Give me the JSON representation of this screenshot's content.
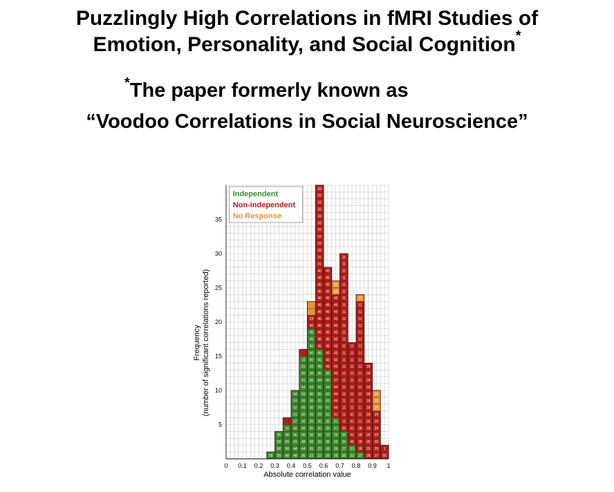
{
  "slide": {
    "title_line1": "Puzzlingly High Correlations in fMRI Studies of",
    "title_line2": "Emotion, Personality, and Social Cognition",
    "title_mark": "*",
    "subtitle_mark": "*",
    "subtitle_line1": "The paper formerly known as",
    "subtitle_line2": "“Voodoo Correlations in Social Neuroscience”"
  },
  "chart_data": {
    "type": "bar",
    "stacked": true,
    "xlabel": "Absolute correlation value",
    "ylabel_line1": "Frequency",
    "ylabel_line2": "(number of significant correlations reported)",
    "xlim": [
      0,
      1
    ],
    "ylim": [
      0,
      40
    ],
    "x_ticks": [
      "0",
      "0.1",
      "0.2",
      "0.3",
      "0.4",
      "0.5",
      "0.6",
      "0.7",
      "0.8",
      "0.9",
      "1"
    ],
    "y_ticks": [
      "5",
      "10",
      "15",
      "20",
      "25",
      "30",
      "35"
    ],
    "grid": true,
    "legend_position": "top-left",
    "bin_width": 0.05,
    "bin_starts": [
      0.25,
      0.3,
      0.35,
      0.4,
      0.45,
      0.5,
      0.55,
      0.6,
      0.65,
      0.7,
      0.75,
      0.8,
      0.85,
      0.9,
      0.95
    ],
    "series": [
      {
        "name": "Independent",
        "color": "#3a8a2e",
        "values": [
          1,
          4,
          5,
          10,
          15,
          19,
          16,
          13,
          6,
          4,
          2,
          1,
          0,
          0,
          0
        ]
      },
      {
        "name": "Non-independent",
        "color": "#b0201a",
        "values": [
          0,
          0,
          1,
          0,
          1,
          2,
          24,
          15,
          18,
          26,
          15,
          22,
          14,
          7,
          2
        ]
      },
      {
        "name": "No Response",
        "color": "#e8923a",
        "values": [
          0,
          0,
          0,
          0,
          0,
          2,
          0,
          0,
          2,
          0,
          0,
          1,
          0,
          3,
          0
        ]
      }
    ],
    "cell_labels": [
      [
        "59"
      ],
      [
        "59",
        "58",
        "59",
        "55"
      ],
      [
        "48",
        "58",
        "59",
        "48",
        "15"
      ],
      [
        "48",
        "44",
        "41",
        "46",
        "44",
        "47",
        "51",
        "52",
        "53",
        "54"
      ],
      [
        "36",
        "44",
        "48",
        "46",
        "46",
        "46",
        "45",
        "45",
        "36",
        "53",
        "43",
        "41",
        "45",
        "21",
        "15"
      ],
      [
        "22",
        "35",
        "38",
        "36",
        "36",
        "39",
        "36",
        "36",
        "36",
        "40",
        "43",
        "36",
        "38",
        "15",
        "40",
        "40",
        "40",
        "45",
        "45",
        "45",
        "23"
      ],
      [
        "22",
        "22",
        "35",
        "26",
        "36",
        "35",
        "29",
        "29",
        "35",
        "35",
        "41",
        "44",
        "45",
        "45",
        "45",
        "45",
        "45",
        "45",
        "45",
        "45",
        "45",
        "45",
        "45",
        "45",
        "45",
        "45",
        "49",
        "40",
        "31",
        "31",
        "33",
        "33",
        "33",
        "33",
        "33",
        "33",
        "33",
        "33",
        "33",
        "33",
        "33",
        "33"
      ],
      [
        "35",
        "36",
        "36",
        "33",
        "36",
        "35",
        "41",
        "41",
        "43",
        "43",
        "44",
        "45",
        "45",
        "45",
        "45",
        "45",
        "45",
        "45",
        "45",
        "45",
        "45",
        "45",
        "45",
        "45",
        "45",
        "45",
        "45",
        "45"
      ],
      [
        "36",
        "36",
        "35",
        "39",
        "41",
        "41",
        "41",
        "44",
        "44",
        "44",
        "44",
        "27",
        "45",
        "45",
        "45",
        "45",
        "45",
        "45",
        "45",
        "45",
        "45",
        "45",
        "45",
        "45",
        "45",
        "45"
      ],
      [
        "36",
        "27",
        "35",
        "35",
        "35",
        "11",
        "11",
        "11",
        "11",
        "11",
        "11",
        "11",
        "11",
        "11",
        "11",
        "11",
        "11",
        "11",
        "11",
        "11",
        "11",
        "11",
        "11",
        "11",
        "11",
        "11",
        "11",
        "11",
        "11",
        "11"
      ],
      [
        "22",
        "33",
        "45",
        "41",
        "41",
        "41",
        "41",
        "11",
        "11",
        "11",
        "11",
        "11",
        "11",
        "11",
        "11",
        "11",
        "11",
        "11",
        "11",
        "11"
      ],
      [
        "37",
        "38",
        "35",
        "35",
        "36",
        "11",
        "11",
        "11",
        "11",
        "11",
        "11",
        "11",
        "11",
        "11",
        "11",
        "11",
        "11",
        "11",
        "11",
        "11",
        "11",
        "11",
        "11",
        "11"
      ],
      [
        "28",
        "25",
        "25",
        "25",
        "18",
        "18",
        "18",
        "18",
        "18",
        "18",
        "18",
        "18",
        "18",
        "18"
      ],
      [
        "27",
        "29",
        "29",
        "29",
        "29",
        "29",
        "29",
        "29",
        "29",
        "29"
      ],
      [
        "55",
        "1"
      ]
    ]
  }
}
